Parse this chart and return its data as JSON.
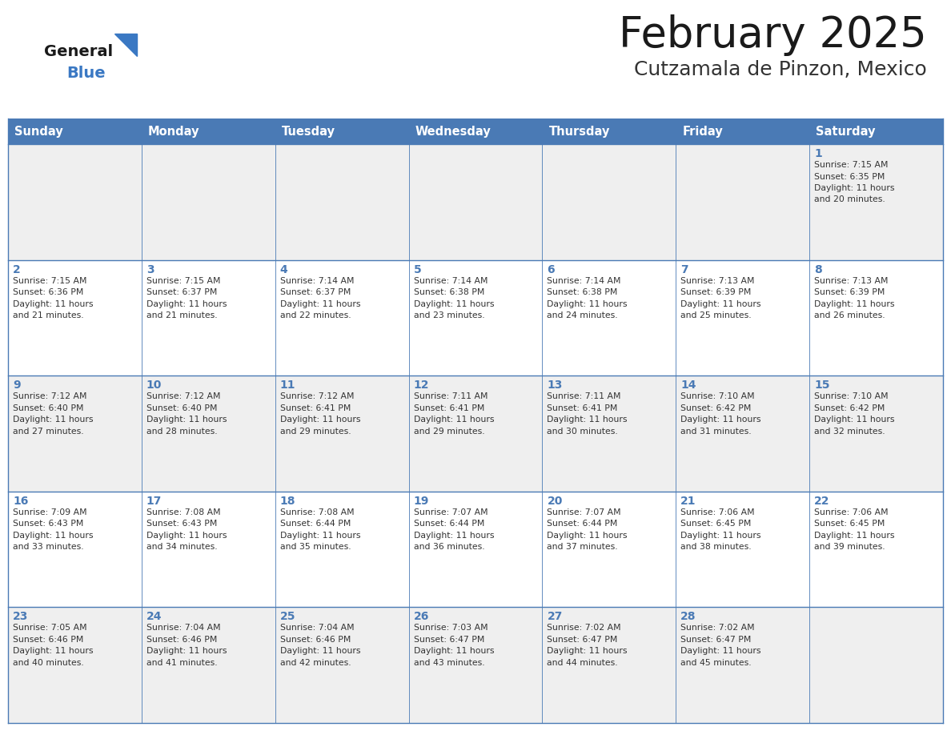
{
  "title": "February 2025",
  "subtitle": "Cutzamala de Pinzon, Mexico",
  "days_of_week": [
    "Sunday",
    "Monday",
    "Tuesday",
    "Wednesday",
    "Thursday",
    "Friday",
    "Saturday"
  ],
  "header_bg": "#4a7ab5",
  "header_text": "#ffffff",
  "row_bg_even": "#efefef",
  "row_bg_odd": "#ffffff",
  "border_color": "#4a7ab5",
  "title_color": "#1a1a1a",
  "subtitle_color": "#333333",
  "day_number_color": "#4a7ab5",
  "cell_text_color": "#333333",
  "logo_general_color": "#1a1a1a",
  "logo_blue_color": "#3a78c3",
  "calendar_data": [
    [
      null,
      null,
      null,
      null,
      null,
      null,
      {
        "day": 1,
        "sunrise": "7:15 AM",
        "sunset": "6:35 PM",
        "daylight_hours": 11,
        "daylight_minutes": 20
      }
    ],
    [
      {
        "day": 2,
        "sunrise": "7:15 AM",
        "sunset": "6:36 PM",
        "daylight_hours": 11,
        "daylight_minutes": 21
      },
      {
        "day": 3,
        "sunrise": "7:15 AM",
        "sunset": "6:37 PM",
        "daylight_hours": 11,
        "daylight_minutes": 21
      },
      {
        "day": 4,
        "sunrise": "7:14 AM",
        "sunset": "6:37 PM",
        "daylight_hours": 11,
        "daylight_minutes": 22
      },
      {
        "day": 5,
        "sunrise": "7:14 AM",
        "sunset": "6:38 PM",
        "daylight_hours": 11,
        "daylight_minutes": 23
      },
      {
        "day": 6,
        "sunrise": "7:14 AM",
        "sunset": "6:38 PM",
        "daylight_hours": 11,
        "daylight_minutes": 24
      },
      {
        "day": 7,
        "sunrise": "7:13 AM",
        "sunset": "6:39 PM",
        "daylight_hours": 11,
        "daylight_minutes": 25
      },
      {
        "day": 8,
        "sunrise": "7:13 AM",
        "sunset": "6:39 PM",
        "daylight_hours": 11,
        "daylight_minutes": 26
      }
    ],
    [
      {
        "day": 9,
        "sunrise": "7:12 AM",
        "sunset": "6:40 PM",
        "daylight_hours": 11,
        "daylight_minutes": 27
      },
      {
        "day": 10,
        "sunrise": "7:12 AM",
        "sunset": "6:40 PM",
        "daylight_hours": 11,
        "daylight_minutes": 28
      },
      {
        "day": 11,
        "sunrise": "7:12 AM",
        "sunset": "6:41 PM",
        "daylight_hours": 11,
        "daylight_minutes": 29
      },
      {
        "day": 12,
        "sunrise": "7:11 AM",
        "sunset": "6:41 PM",
        "daylight_hours": 11,
        "daylight_minutes": 29
      },
      {
        "day": 13,
        "sunrise": "7:11 AM",
        "sunset": "6:41 PM",
        "daylight_hours": 11,
        "daylight_minutes": 30
      },
      {
        "day": 14,
        "sunrise": "7:10 AM",
        "sunset": "6:42 PM",
        "daylight_hours": 11,
        "daylight_minutes": 31
      },
      {
        "day": 15,
        "sunrise": "7:10 AM",
        "sunset": "6:42 PM",
        "daylight_hours": 11,
        "daylight_minutes": 32
      }
    ],
    [
      {
        "day": 16,
        "sunrise": "7:09 AM",
        "sunset": "6:43 PM",
        "daylight_hours": 11,
        "daylight_minutes": 33
      },
      {
        "day": 17,
        "sunrise": "7:08 AM",
        "sunset": "6:43 PM",
        "daylight_hours": 11,
        "daylight_minutes": 34
      },
      {
        "day": 18,
        "sunrise": "7:08 AM",
        "sunset": "6:44 PM",
        "daylight_hours": 11,
        "daylight_minutes": 35
      },
      {
        "day": 19,
        "sunrise": "7:07 AM",
        "sunset": "6:44 PM",
        "daylight_hours": 11,
        "daylight_minutes": 36
      },
      {
        "day": 20,
        "sunrise": "7:07 AM",
        "sunset": "6:44 PM",
        "daylight_hours": 11,
        "daylight_minutes": 37
      },
      {
        "day": 21,
        "sunrise": "7:06 AM",
        "sunset": "6:45 PM",
        "daylight_hours": 11,
        "daylight_minutes": 38
      },
      {
        "day": 22,
        "sunrise": "7:06 AM",
        "sunset": "6:45 PM",
        "daylight_hours": 11,
        "daylight_minutes": 39
      }
    ],
    [
      {
        "day": 23,
        "sunrise": "7:05 AM",
        "sunset": "6:46 PM",
        "daylight_hours": 11,
        "daylight_minutes": 40
      },
      {
        "day": 24,
        "sunrise": "7:04 AM",
        "sunset": "6:46 PM",
        "daylight_hours": 11,
        "daylight_minutes": 41
      },
      {
        "day": 25,
        "sunrise": "7:04 AM",
        "sunset": "6:46 PM",
        "daylight_hours": 11,
        "daylight_minutes": 42
      },
      {
        "day": 26,
        "sunrise": "7:03 AM",
        "sunset": "6:47 PM",
        "daylight_hours": 11,
        "daylight_minutes": 43
      },
      {
        "day": 27,
        "sunrise": "7:02 AM",
        "sunset": "6:47 PM",
        "daylight_hours": 11,
        "daylight_minutes": 44
      },
      {
        "day": 28,
        "sunrise": "7:02 AM",
        "sunset": "6:47 PM",
        "daylight_hours": 11,
        "daylight_minutes": 45
      },
      null
    ]
  ]
}
